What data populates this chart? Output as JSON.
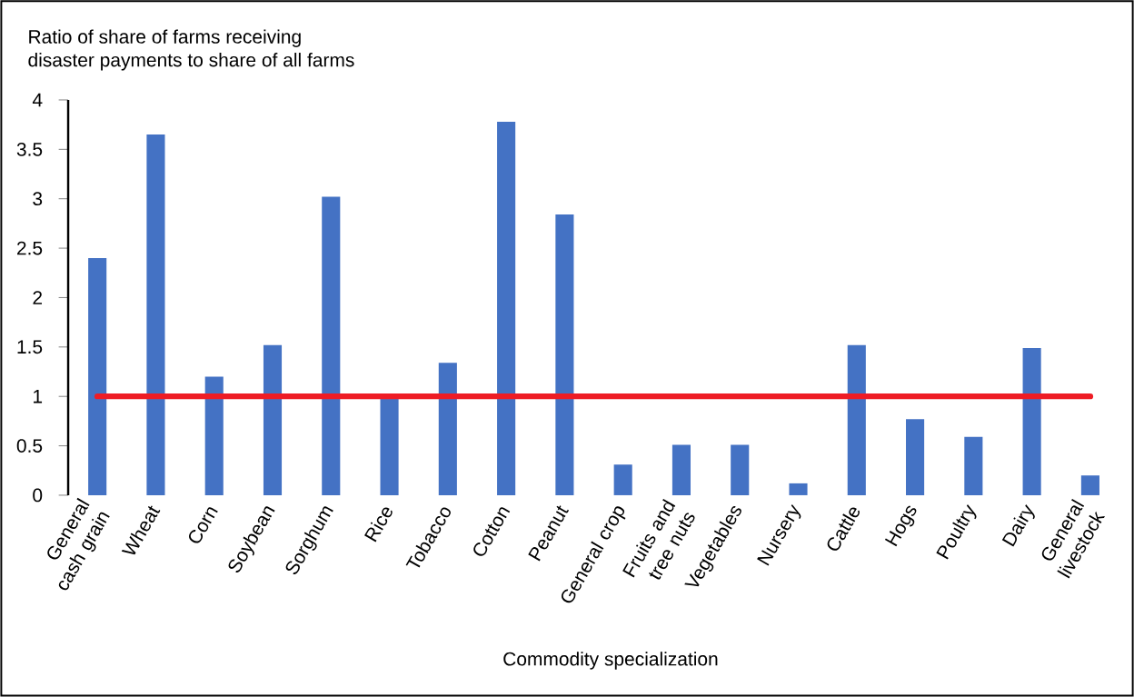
{
  "chart_data": {
    "type": "bar",
    "ylabel": "Ratio of share of farms receiving\ndisaster payments to share of all farms",
    "xlabel": "Commodity specialization",
    "categories": [
      "General cash grain",
      "Wheat",
      "Corn",
      "Soybean",
      "Sorghum",
      "Rice",
      "Tobacco",
      "Cotton",
      "Peanut",
      "General crop",
      "Fruits and tree nuts",
      "Vegetables",
      "Nursery",
      "Cattle",
      "Hogs",
      "Poultry",
      "Dairy",
      "General livestock"
    ],
    "values": [
      2.4,
      3.65,
      1.2,
      1.52,
      3.02,
      1.0,
      1.34,
      3.78,
      2.84,
      0.31,
      0.51,
      0.51,
      0.12,
      1.52,
      0.77,
      0.59,
      1.49,
      0.2
    ],
    "color": "#4472c4",
    "ylim": [
      0,
      4
    ],
    "yticks": [
      0,
      {
        "value": 0.5,
        "label": "0.5"
      },
      1,
      {
        "value": 1.5,
        "label": "1.5"
      },
      2,
      {
        "value": 2.5,
        "label": "2.5"
      },
      3,
      {
        "value": 3.5,
        "label": "3.5"
      },
      4
    ],
    "ref_lines": [
      {
        "axis": "y",
        "value": 1,
        "color": "#ee1c25"
      }
    ],
    "grid": false
  }
}
